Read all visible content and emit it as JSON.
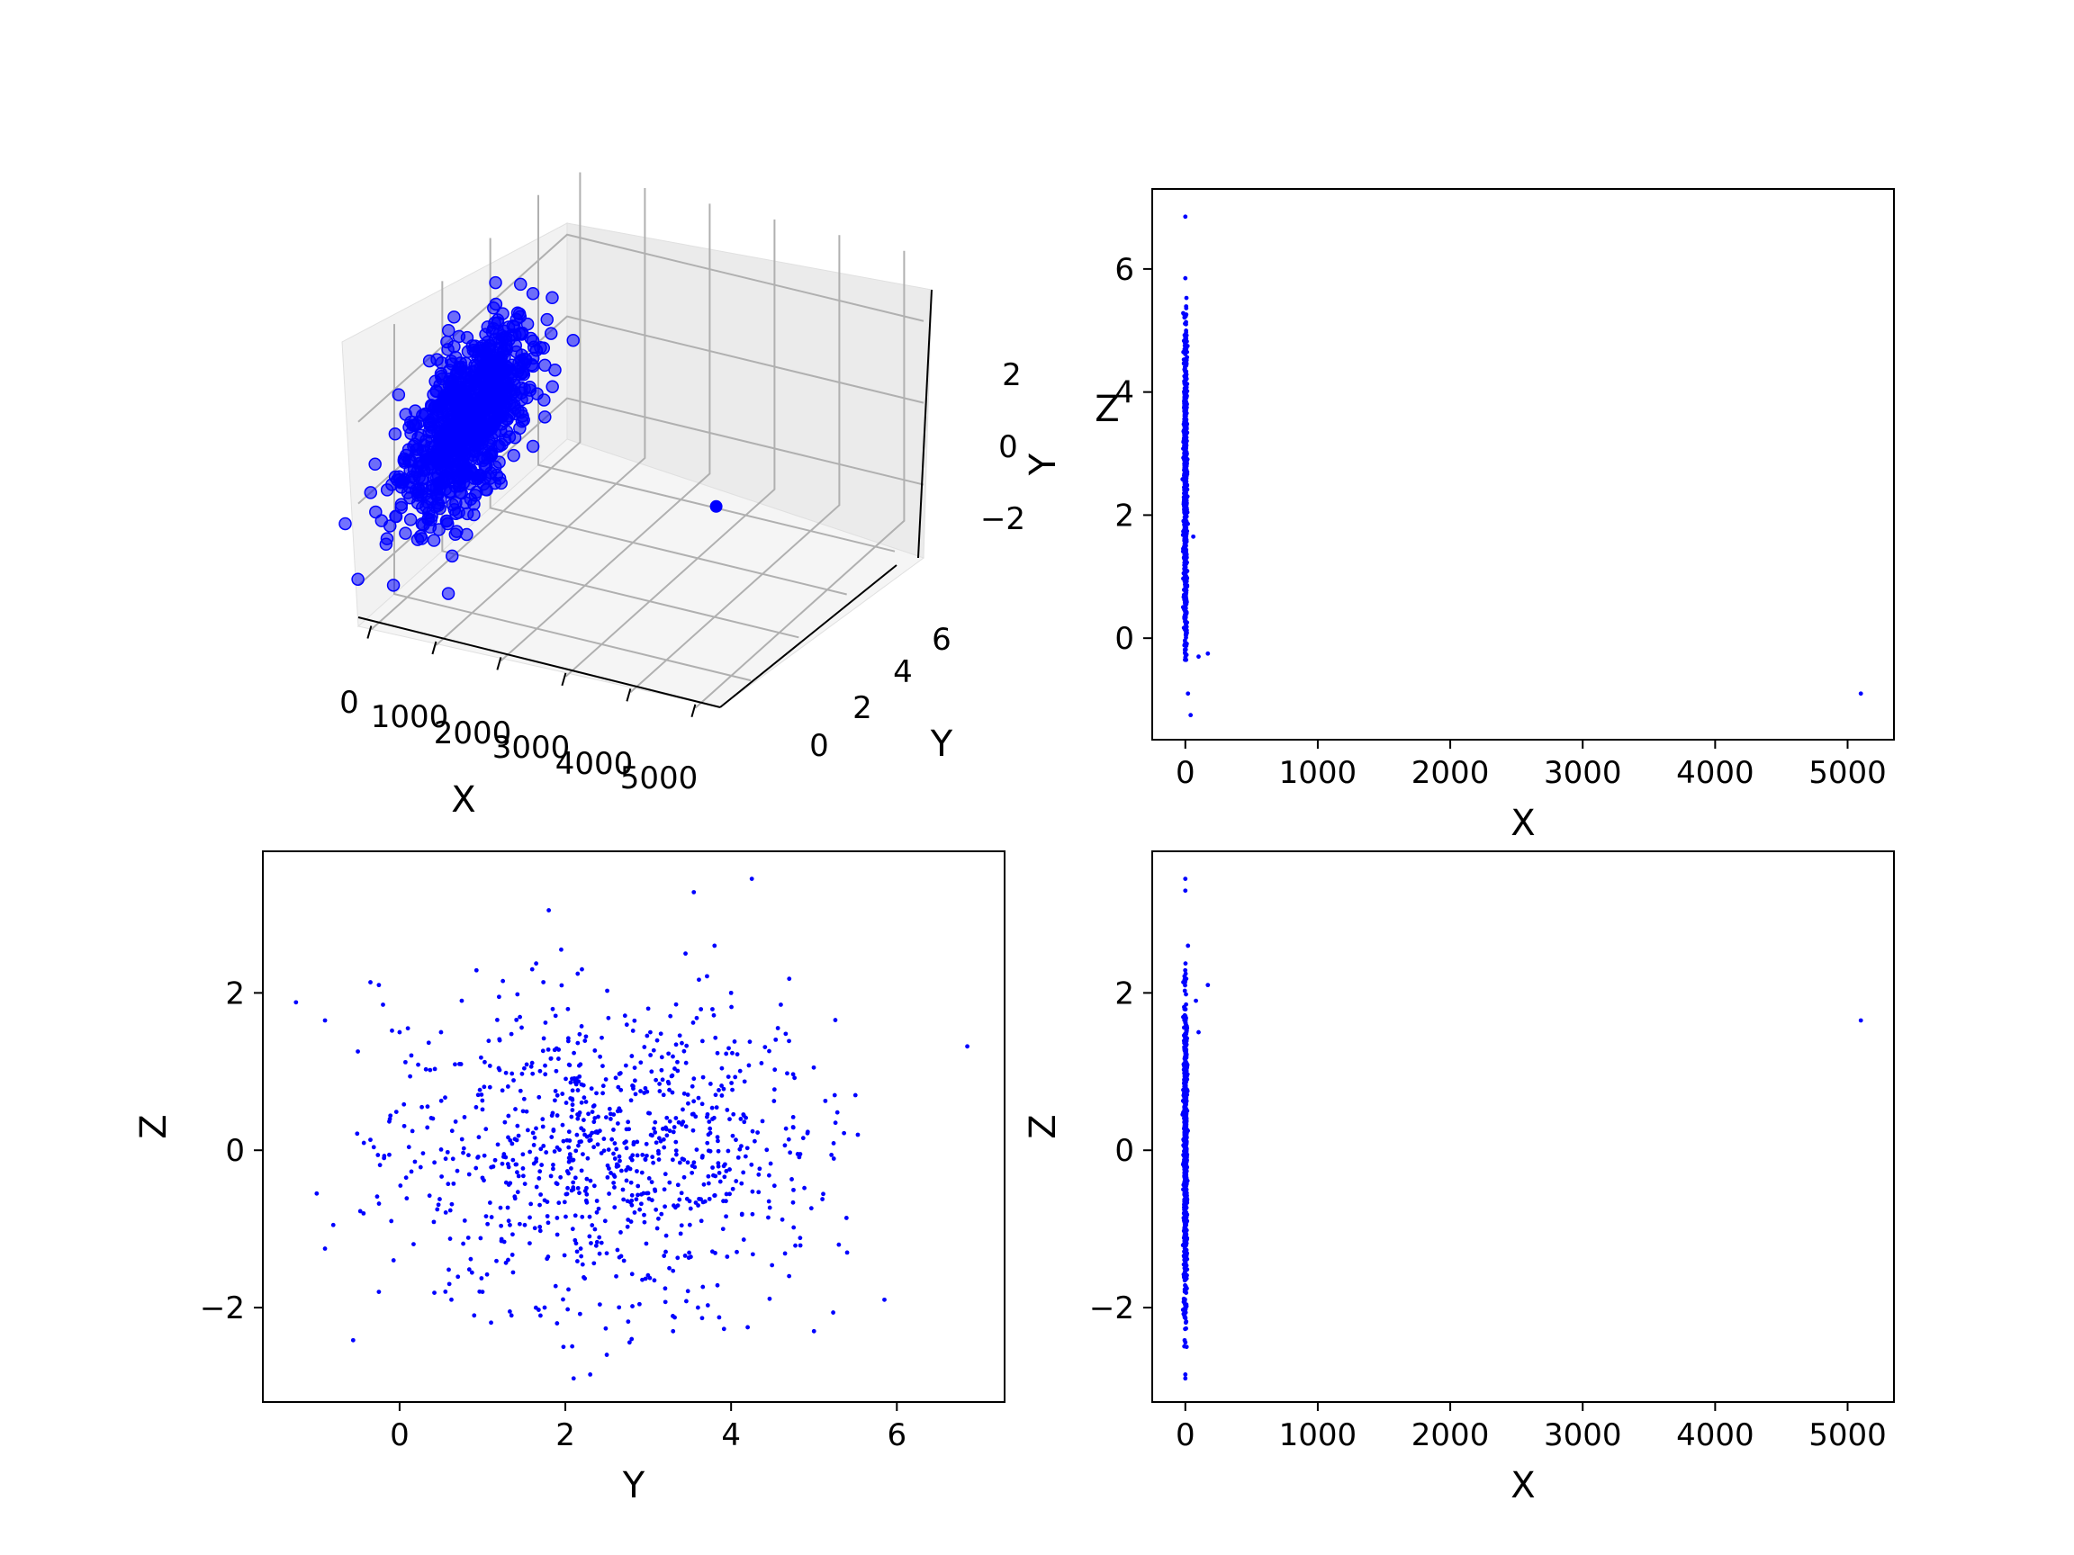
{
  "chart_data": [
    {
      "id": "3d",
      "type": "scatter3d",
      "color": "#0000ff",
      "xlabel": "X",
      "ylabel": "Y",
      "zlabel": "Z",
      "xticks": [
        0,
        1000,
        2000,
        3000,
        4000,
        5000
      ],
      "yticks": [
        0,
        2,
        4,
        6
      ],
      "zticks": [
        2,
        0,
        -2
      ],
      "ztick_labels": [
        "2",
        "0",
        "−2"
      ],
      "xlim": [
        -200,
        5300
      ],
      "ylim": [
        -1.5,
        7.2
      ],
      "zlim": [
        -3.0,
        3.6
      ],
      "note_points": "main cloud near x≈0, y≈2.5, z≈0 plus one outlier at x≈5100",
      "outlier": {
        "x": 5100,
        "y": -0.9,
        "z": 1.65
      }
    },
    {
      "id": "xy",
      "type": "scatter",
      "color": "#0000ff",
      "xlabel": "X",
      "ylabel": "Y",
      "xlim": [
        -250,
        5350
      ],
      "ylim": [
        -1.65,
        7.3
      ],
      "xticks": [
        0,
        1000,
        2000,
        3000,
        4000,
        5000
      ],
      "yticks": [
        0,
        2,
        4,
        6
      ],
      "points_extra": [
        [
          5100,
          -0.9
        ],
        [
          0,
          6.85
        ],
        [
          0,
          5.85
        ],
        [
          100,
          -0.3
        ],
        [
          170,
          -0.25
        ],
        [
          40,
          -1.25
        ],
        [
          20,
          -0.9
        ],
        [
          60,
          1.65
        ]
      ]
    },
    {
      "id": "yz",
      "type": "scatter",
      "color": "#0000ff",
      "xlabel": "Y",
      "ylabel": "Z",
      "xlim": [
        -1.65,
        7.3
      ],
      "ylim": [
        -3.2,
        3.8
      ],
      "xticks": [
        0,
        2,
        4,
        6
      ],
      "yticks": [
        -2,
        0,
        2
      ],
      "ytick_labels": [
        "−2",
        "0",
        "2"
      ],
      "points": [
        [
          -1.25,
          1.88
        ],
        [
          -0.9,
          1.65
        ],
        [
          6.85,
          1.32
        ],
        [
          5.85,
          -1.9
        ],
        [
          -1.0,
          -0.55
        ],
        [
          -0.9,
          -1.25
        ],
        [
          -0.8,
          -0.95
        ],
        [
          4.25,
          3.45
        ],
        [
          3.55,
          3.28
        ],
        [
          1.8,
          3.05
        ],
        [
          3.8,
          2.6
        ],
        [
          1.95,
          2.55
        ],
        [
          3.45,
          2.5
        ],
        [
          2.3,
          -2.85
        ],
        [
          2.1,
          -2.9
        ],
        [
          1.9,
          -2.2
        ],
        [
          2.5,
          -2.6
        ],
        [
          5.0,
          -2.3
        ],
        [
          4.2,
          -2.25
        ],
        [
          -0.25,
          -1.8
        ],
        [
          0.9,
          -2.1
        ],
        [
          1.35,
          -2.1
        ],
        [
          0.0,
          1.5
        ],
        [
          -0.25,
          2.1
        ],
        [
          -0.2,
          1.85
        ],
        [
          0.6,
          -1.7
        ],
        [
          5.25,
          0.7
        ],
        [
          5.5,
          0.7
        ],
        [
          5.4,
          -1.3
        ],
        [
          5.3,
          -1.2
        ],
        [
          0.1,
          1.55
        ],
        [
          0.5,
          1.5
        ],
        [
          -0.1,
          -0.9
        ],
        [
          1.6,
          2.3
        ],
        [
          2.2,
          2.3
        ],
        [
          4.0,
          2.0
        ],
        [
          4.6,
          1.85
        ],
        [
          3.0,
          1.8
        ],
        [
          1.0,
          -1.8
        ],
        [
          2.8,
          -2.4
        ],
        [
          3.3,
          -2.3
        ],
        [
          3.6,
          -2.0
        ],
        [
          4.7,
          -1.6
        ],
        [
          1.75,
          -2.0
        ],
        [
          0.75,
          1.9
        ],
        [
          1.2,
          1.95
        ]
      ]
    },
    {
      "id": "xz",
      "type": "scatter",
      "color": "#0000ff",
      "xlabel": "X",
      "ylabel": "Z",
      "xlim": [
        -250,
        5350
      ],
      "ylim": [
        -3.2,
        3.8
      ],
      "xticks": [
        0,
        1000,
        2000,
        3000,
        4000,
        5000
      ],
      "yticks": [
        -2,
        0,
        2
      ],
      "ytick_labels": [
        "−2",
        "0",
        "2"
      ],
      "points_extra": [
        [
          5100,
          1.65
        ],
        [
          170,
          2.1
        ],
        [
          100,
          1.5
        ],
        [
          80,
          1.9
        ],
        [
          0,
          3.45
        ],
        [
          0,
          3.3
        ],
        [
          20,
          2.6
        ],
        [
          0,
          -2.9
        ],
        [
          0,
          -2.85
        ]
      ]
    }
  ]
}
